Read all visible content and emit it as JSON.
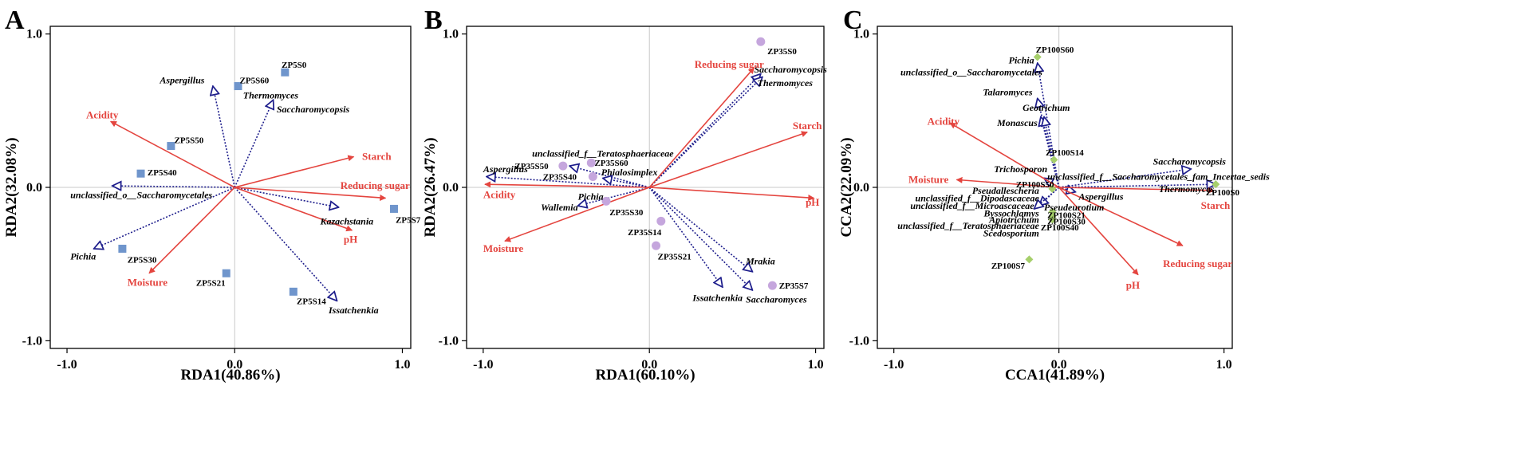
{
  "colors": {
    "env": "#e4453f",
    "species": "#1e1e8c",
    "sampleA": "#6f95cc",
    "sampleB": "#c5a6dd",
    "sampleC": "#a6cf6b"
  },
  "chart_data": [
    {
      "type": "scatter",
      "panel": "A",
      "xlabel": "RDA1(40.86%)",
      "ylabel": "RDA2(32.08%)",
      "xlim": [
        -1.1,
        1.05
      ],
      "ylim": [
        -1.05,
        1.05
      ],
      "xticks": [
        {
          "v": -1.0,
          "t": "-1.0"
        },
        {
          "v": 0.0,
          "t": "0.0"
        },
        {
          "v": 1.0,
          "t": "1.0"
        }
      ],
      "yticks": [
        {
          "v": -1.0,
          "t": "-1.0"
        },
        {
          "v": 0.0,
          "t": "0.0"
        },
        {
          "v": 1.0,
          "t": "1.0"
        }
      ],
      "sample_marker": "square",
      "sample_color": "#6f95cc",
      "env": [
        {
          "name": "Acidity",
          "x": -0.74,
          "y": 0.43,
          "lx": -0.79,
          "ly": 0.47,
          "anchor": "middle"
        },
        {
          "name": "Starch",
          "x": 0.71,
          "y": 0.2,
          "lx": 0.76,
          "ly": 0.2,
          "anchor": "start"
        },
        {
          "name": "Reducing sugar",
          "x": 0.9,
          "y": -0.07,
          "lx": 0.63,
          "ly": 0.01,
          "anchor": "start"
        },
        {
          "name": "pH",
          "x": 0.7,
          "y": -0.28,
          "lx": 0.65,
          "ly": -0.34,
          "anchor": "start"
        },
        {
          "name": "Moisture",
          "x": -0.51,
          "y": -0.56,
          "lx": -0.52,
          "ly": -0.62,
          "anchor": "middle"
        }
      ],
      "species": [
        {
          "name": "Aspergillus",
          "x": -0.13,
          "y": 0.66,
          "lx": -0.18,
          "ly": 0.7,
          "anchor": "end"
        },
        {
          "name": "Saccharomycopsis",
          "x": 0.23,
          "y": 0.57,
          "lx": 0.25,
          "ly": 0.51,
          "anchor": "start"
        },
        {
          "name": "unclassified_o__Saccharomycetales",
          "x": -0.73,
          "y": 0.01,
          "lx": -0.98,
          "ly": -0.05,
          "anchor": "start"
        },
        {
          "name": "Pichia",
          "x": -0.84,
          "y": -0.4,
          "lx": -0.98,
          "ly": -0.45,
          "anchor": "start"
        },
        {
          "name": "Kazachstania",
          "x": 0.62,
          "y": -0.13,
          "lx": 0.51,
          "ly": -0.22,
          "anchor": "start"
        },
        {
          "name": "Issatchenkia",
          "x": 0.61,
          "y": -0.74,
          "lx": 0.56,
          "ly": -0.8,
          "anchor": "start"
        }
      ],
      "species_plain": [
        {
          "name": "Thermomyces",
          "lx": 0.05,
          "ly": 0.6,
          "anchor": "start"
        }
      ],
      "samples": [
        {
          "name": "ZP5S0",
          "x": 0.3,
          "y": 0.75,
          "lx": 0.28,
          "ly": 0.8,
          "anchor": "start"
        },
        {
          "name": "ZP5S60",
          "x": 0.02,
          "y": 0.66,
          "lx": 0.03,
          "ly": 0.7,
          "anchor": "start"
        },
        {
          "name": "ZP5S50",
          "x": -0.38,
          "y": 0.27,
          "lx": -0.36,
          "ly": 0.31,
          "anchor": "start"
        },
        {
          "name": "ZP5S40",
          "x": -0.56,
          "y": 0.09,
          "lx": -0.52,
          "ly": 0.1,
          "anchor": "start"
        },
        {
          "name": "ZP5S7",
          "x": 0.95,
          "y": -0.14,
          "lx": 0.96,
          "ly": -0.21,
          "anchor": "start"
        },
        {
          "name": "ZP5S30",
          "x": -0.67,
          "y": -0.4,
          "lx": -0.64,
          "ly": -0.47,
          "anchor": "start"
        },
        {
          "name": "ZP5S21",
          "x": -0.05,
          "y": -0.56,
          "lx": -0.23,
          "ly": -0.62,
          "anchor": "start"
        },
        {
          "name": "ZP5S14",
          "x": 0.35,
          "y": -0.68,
          "lx": 0.37,
          "ly": -0.74,
          "anchor": "start"
        }
      ]
    },
    {
      "type": "scatter",
      "panel": "B",
      "xlabel": "RDA1(60.10%)",
      "ylabel": "RDA2(26.47%)",
      "xlim": [
        -1.1,
        1.05
      ],
      "ylim": [
        -1.05,
        1.05
      ],
      "xticks": [
        {
          "v": -1.0,
          "t": "-1.0"
        },
        {
          "v": 0.0,
          "t": "0.0"
        },
        {
          "v": 1.0,
          "t": "1.0"
        }
      ],
      "yticks": [
        {
          "v": -1.0,
          "t": "-1.0"
        },
        {
          "v": 0.0,
          "t": "0.0"
        },
        {
          "v": 1.0,
          "t": "1.0"
        }
      ],
      "sample_marker": "circle",
      "sample_color": "#c5a6dd",
      "env": [
        {
          "name": "Reducing sugar",
          "x": 0.63,
          "y": 0.78,
          "lx": 0.48,
          "ly": 0.8,
          "anchor": "middle"
        },
        {
          "name": "Starch",
          "x": 0.95,
          "y": 0.36,
          "lx": 0.95,
          "ly": 0.4,
          "anchor": "middle"
        },
        {
          "name": "pH",
          "x": 0.99,
          "y": -0.07,
          "lx": 0.94,
          "ly": -0.1,
          "anchor": "start"
        },
        {
          "name": "Acidity",
          "x": -0.99,
          "y": 0.02,
          "lx": -1.0,
          "ly": -0.05,
          "anchor": "start"
        },
        {
          "name": "Moisture",
          "x": -0.87,
          "y": -0.35,
          "lx": -1.0,
          "ly": -0.4,
          "anchor": "start"
        }
      ],
      "species": [
        {
          "name": "Saccharomycopsis",
          "x": 0.67,
          "y": 0.74,
          "lx": 0.63,
          "ly": 0.77,
          "anchor": "start"
        },
        {
          "name": "Thermomyces",
          "x": 0.68,
          "y": 0.72,
          "lx": 0.65,
          "ly": 0.68,
          "anchor": "start"
        },
        {
          "name": "Aspergillus",
          "x": -0.98,
          "y": 0.07,
          "lx": -1.0,
          "ly": 0.12,
          "anchor": "start"
        },
        {
          "name": "Phialosimplex",
          "x": -0.28,
          "y": 0.06,
          "lx": -0.29,
          "ly": 0.1,
          "anchor": "start"
        },
        {
          "name": "Wallemia",
          "x": -0.43,
          "y": -0.12,
          "lx": -0.43,
          "ly": -0.13,
          "anchor": "end"
        },
        {
          "name": "unclassified_f__Teratosphaeriaceae",
          "x": -0.48,
          "y": 0.14,
          "lx": -0.28,
          "ly": 0.22,
          "anchor": "middle"
        },
        {
          "name": "Mrakia",
          "x": 0.62,
          "y": -0.55,
          "lx": 0.58,
          "ly": -0.48,
          "anchor": "start"
        },
        {
          "name": "Issatchenkia",
          "x": 0.44,
          "y": -0.65,
          "lx": 0.26,
          "ly": -0.72,
          "anchor": "start"
        },
        {
          "name": "Saccharomyces",
          "x": 0.62,
          "y": -0.67,
          "lx": 0.58,
          "ly": -0.73,
          "anchor": "start"
        }
      ],
      "species_plain": [
        {
          "name": "Pichia",
          "lx": -0.43,
          "ly": -0.06,
          "anchor": "start"
        }
      ],
      "samples": [
        {
          "name": "ZP35S0",
          "x": 0.67,
          "y": 0.95,
          "lx": 0.71,
          "ly": 0.89,
          "anchor": "start"
        },
        {
          "name": "ZP35S50",
          "x": -0.52,
          "y": 0.14,
          "lx": -0.81,
          "ly": 0.14,
          "anchor": "start"
        },
        {
          "name": "ZP35S60",
          "x": -0.35,
          "y": 0.16,
          "lx": -0.33,
          "ly": 0.16,
          "anchor": "start"
        },
        {
          "name": "ZP35S40",
          "x": -0.34,
          "y": 0.07,
          "lx": -0.64,
          "ly": 0.07,
          "anchor": "start"
        },
        {
          "name": "ZP35S30",
          "x": -0.26,
          "y": -0.09,
          "lx": -0.24,
          "ly": -0.16,
          "anchor": "start"
        },
        {
          "name": "ZP35S14",
          "x": 0.07,
          "y": -0.22,
          "lx": -0.13,
          "ly": -0.29,
          "anchor": "start"
        },
        {
          "name": "ZP35S21",
          "x": 0.04,
          "y": -0.38,
          "lx": 0.05,
          "ly": -0.45,
          "anchor": "start"
        },
        {
          "name": "ZP35S7",
          "x": 0.74,
          "y": -0.64,
          "lx": 0.78,
          "ly": -0.64,
          "anchor": "start"
        }
      ]
    },
    {
      "type": "scatter",
      "panel": "C",
      "xlabel": "CCA1(41.89%)",
      "ylabel": "CCA2(22.09%)",
      "xlim": [
        -1.1,
        1.05
      ],
      "ylim": [
        -1.05,
        1.05
      ],
      "xticks": [
        {
          "v": -1.0,
          "t": "-1.0"
        },
        {
          "v": 0.0,
          "t": "0.0"
        },
        {
          "v": 1.0,
          "t": "1.0"
        }
      ],
      "yticks": [
        {
          "v": -1.0,
          "t": "-1.0"
        },
        {
          "v": 0.0,
          "t": "0.0"
        },
        {
          "v": 1.0,
          "t": "1.0"
        }
      ],
      "sample_marker": "diamond",
      "sample_color": "#a6cf6b",
      "env": [
        {
          "name": "Acidity",
          "x": -0.66,
          "y": 0.42,
          "lx": -0.7,
          "ly": 0.43,
          "anchor": "middle"
        },
        {
          "name": "Moisture",
          "x": -0.62,
          "y": 0.05,
          "lx": -0.79,
          "ly": 0.05,
          "anchor": "middle"
        },
        {
          "name": "Starch",
          "x": 0.94,
          "y": -0.02,
          "lx": 0.86,
          "ly": -0.12,
          "anchor": "start"
        },
        {
          "name": "Reducing sugar",
          "x": 0.75,
          "y": -0.38,
          "lx": 0.63,
          "ly": -0.5,
          "anchor": "start"
        },
        {
          "name": "pH",
          "x": 0.48,
          "y": -0.57,
          "lx": 0.49,
          "ly": -0.64,
          "anchor": "end"
        }
      ],
      "species": [
        {
          "name": "Pichia",
          "x": -0.13,
          "y": 0.81,
          "lx": -0.15,
          "ly": 0.83,
          "anchor": "end"
        },
        {
          "name": "Talaromyces",
          "x": -0.13,
          "y": 0.58,
          "lx": -0.16,
          "ly": 0.62,
          "anchor": "end"
        },
        {
          "name": "Geotrichum",
          "x": -0.11,
          "y": 0.46,
          "lx": -0.22,
          "ly": 0.52,
          "anchor": "start"
        },
        {
          "name": "Monascus",
          "x": -0.09,
          "y": 0.46,
          "lx": -0.13,
          "ly": 0.42,
          "anchor": "end"
        },
        {
          "name": "Saccharomycopsis",
          "x": 0.8,
          "y": 0.12,
          "lx": 0.57,
          "ly": 0.17,
          "anchor": "start"
        },
        {
          "name": "unclassified_f__Saccharomycetales_fam_Incertae_sedis",
          "x": -0.09,
          "y": 0.06,
          "lx": -0.07,
          "ly": 0.07,
          "anchor": "start"
        },
        {
          "name": "Aspergillus",
          "x": 0.1,
          "y": -0.03,
          "lx": 0.12,
          "ly": -0.06,
          "anchor": "start"
        },
        {
          "name": "Pseudeurotium",
          "x": -0.12,
          "y": -0.12,
          "lx": -0.09,
          "ly": -0.13,
          "anchor": "start"
        },
        {
          "name": "unclassified_f__Microascaceae",
          "x": -0.15,
          "y": -0.14,
          "lx": -0.15,
          "ly": -0.12,
          "anchor": "end"
        },
        {
          "name": "Thermomyces",
          "x": 0.95,
          "y": 0.02,
          "lx": 0.94,
          "ly": -0.01,
          "anchor": "end"
        }
      ],
      "species_plain": [
        {
          "name": "unclassified_o__Saccharomycetales",
          "lx": -0.1,
          "ly": 0.75,
          "anchor": "end"
        },
        {
          "name": "Trichosporon",
          "lx": -0.07,
          "ly": 0.12,
          "anchor": "end"
        },
        {
          "name": "Pseudallescheria",
          "lx": -0.12,
          "ly": -0.02,
          "anchor": "end"
        },
        {
          "name": "unclassified_f__Dipodascaceae",
          "lx": -0.12,
          "ly": -0.07,
          "anchor": "end"
        },
        {
          "name": "Byssochlamys",
          "lx": -0.12,
          "ly": -0.17,
          "anchor": "end"
        },
        {
          "name": "Apiotrichum",
          "lx": -0.12,
          "ly": -0.21,
          "anchor": "end"
        },
        {
          "name": "unclassified_f__Teratosphaeriaceae",
          "lx": -0.12,
          "ly": -0.25,
          "anchor": "end"
        },
        {
          "name": "Scedosporium",
          "lx": -0.12,
          "ly": -0.3,
          "anchor": "end"
        }
      ],
      "samples": [
        {
          "name": "ZP100S60",
          "x": -0.13,
          "y": 0.85,
          "lx": -0.14,
          "ly": 0.9,
          "anchor": "start"
        },
        {
          "name": "ZP100S14",
          "x": -0.03,
          "y": 0.18,
          "lx": -0.08,
          "ly": 0.23,
          "anchor": "start"
        },
        {
          "name": "ZP100S0",
          "x": 0.95,
          "y": 0.02,
          "lx": 0.89,
          "ly": -0.03,
          "anchor": "start"
        },
        {
          "name": "ZP100S50",
          "x": -0.04,
          "y": -0.01,
          "lx": -0.26,
          "ly": 0.02,
          "anchor": "start"
        },
        {
          "name": "ZP100S21",
          "x": -0.04,
          "y": -0.16,
          "lx": -0.07,
          "ly": -0.18,
          "anchor": "start"
        },
        {
          "name": "ZP100S30",
          "x": -0.04,
          "y": -0.19,
          "lx": -0.07,
          "ly": -0.22,
          "anchor": "start"
        },
        {
          "name": "ZP100S40",
          "x": -0.04,
          "y": -0.21,
          "lx": -0.11,
          "ly": -0.26,
          "anchor": "start"
        },
        {
          "name": "ZP100S7",
          "x": -0.18,
          "y": -0.47,
          "lx": -0.41,
          "ly": -0.51,
          "anchor": "start"
        }
      ]
    }
  ]
}
